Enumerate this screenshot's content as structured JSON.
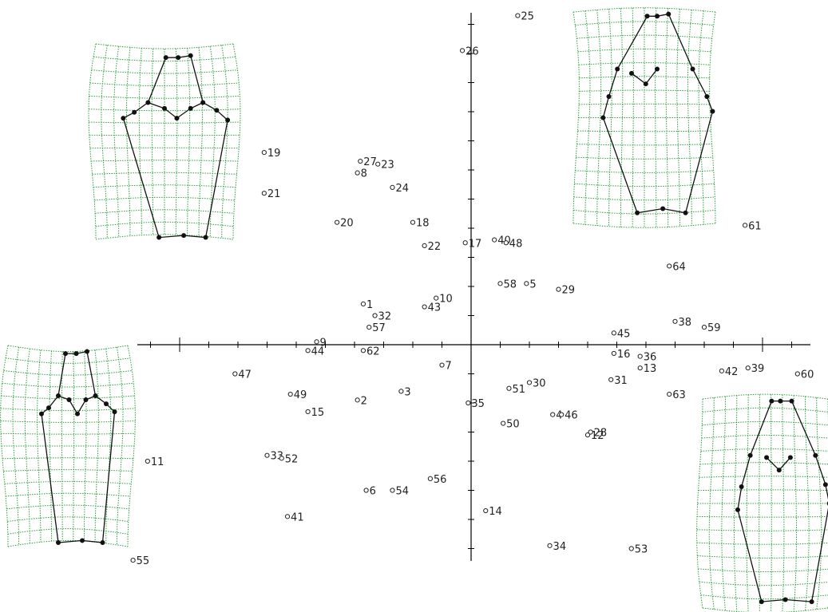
{
  "chart_data": {
    "type": "scatter",
    "title": "",
    "xlabel": "",
    "ylabel": "",
    "xlim": [
      -11.6,
      11.6
    ],
    "ylim": [
      -7.5,
      11.5
    ],
    "grid": false,
    "points": [
      {
        "label": "1",
        "x": -3.7,
        "y": 1.4
      },
      {
        "label": "2",
        "x": -3.9,
        "y": -1.9
      },
      {
        "label": "3",
        "x": -2.4,
        "y": -1.6
      },
      {
        "label": "4",
        "x": 2.8,
        "y": -2.4
      },
      {
        "label": "5",
        "x": 1.9,
        "y": 2.1
      },
      {
        "label": "6",
        "x": -3.6,
        "y": -5.0
      },
      {
        "label": "7",
        "x": -1.0,
        "y": -0.7
      },
      {
        "label": "8",
        "x": -3.9,
        "y": 5.9
      },
      {
        "label": "9",
        "x": -5.3,
        "y": 0.1
      },
      {
        "label": "10",
        "x": -1.2,
        "y": 1.6
      },
      {
        "label": "11",
        "x": -11.1,
        "y": -4.0
      },
      {
        "label": "12",
        "x": 4.0,
        "y": -3.1
      },
      {
        "label": "13",
        "x": 5.8,
        "y": -0.8
      },
      {
        "label": "14",
        "x": 0.5,
        "y": -5.7
      },
      {
        "label": "15",
        "x": -5.6,
        "y": -2.3
      },
      {
        "label": "16",
        "x": 4.9,
        "y": -0.3
      },
      {
        "label": "17",
        "x": -0.2,
        "y": 3.5
      },
      {
        "label": "18",
        "x": -2.0,
        "y": 4.2
      },
      {
        "label": "19",
        "x": -7.1,
        "y": 6.6
      },
      {
        "label": "20",
        "x": -4.6,
        "y": 4.2
      },
      {
        "label": "21",
        "x": -7.1,
        "y": 5.2
      },
      {
        "label": "22",
        "x": -1.6,
        "y": 3.4
      },
      {
        "label": "23",
        "x": -3.2,
        "y": 6.2
      },
      {
        "label": "24",
        "x": -2.7,
        "y": 5.4
      },
      {
        "label": "25",
        "x": 1.6,
        "y": 11.3
      },
      {
        "label": "26",
        "x": -0.3,
        "y": 10.1
      },
      {
        "label": "27",
        "x": -3.8,
        "y": 6.3
      },
      {
        "label": "28",
        "x": 4.1,
        "y": -3.0
      },
      {
        "label": "29",
        "x": 3.0,
        "y": 1.9
      },
      {
        "label": "30",
        "x": 2.0,
        "y": -1.3
      },
      {
        "label": "31",
        "x": 4.8,
        "y": -1.2
      },
      {
        "label": "32",
        "x": -3.3,
        "y": 1.0
      },
      {
        "label": "33",
        "x": -7.0,
        "y": -3.8
      },
      {
        "label": "34",
        "x": 2.7,
        "y": -6.9
      },
      {
        "label": "35",
        "x": -0.1,
        "y": -2.0
      },
      {
        "label": "36",
        "x": 5.8,
        "y": -0.4
      },
      {
        "label": "38",
        "x": 7.0,
        "y": 0.8
      },
      {
        "label": "39",
        "x": 9.5,
        "y": -0.8
      },
      {
        "label": "40",
        "x": 0.8,
        "y": 3.6
      },
      {
        "label": "41",
        "x": -6.3,
        "y": -5.9
      },
      {
        "label": "42",
        "x": 8.6,
        "y": -0.9
      },
      {
        "label": "43",
        "x": -1.6,
        "y": 1.3
      },
      {
        "label": "44",
        "x": -5.6,
        "y": -0.2
      },
      {
        "label": "45",
        "x": 4.9,
        "y": 0.4
      },
      {
        "label": "46",
        "x": 3.1,
        "y": -2.4
      },
      {
        "label": "47",
        "x": -8.1,
        "y": -1.0
      },
      {
        "label": "48",
        "x": 1.2,
        "y": 3.5
      },
      {
        "label": "49",
        "x": -6.2,
        "y": -1.7
      },
      {
        "label": "50",
        "x": 1.1,
        "y": -2.7
      },
      {
        "label": "51",
        "x": 1.3,
        "y": -1.5
      },
      {
        "label": "52",
        "x": -6.5,
        "y": -3.9
      },
      {
        "label": "53",
        "x": 5.5,
        "y": -7.0
      },
      {
        "label": "54",
        "x": -2.7,
        "y": -5.0
      },
      {
        "label": "55",
        "x": -11.6,
        "y": -7.4
      },
      {
        "label": "56",
        "x": -1.4,
        "y": -4.6
      },
      {
        "label": "57",
        "x": -3.5,
        "y": 0.6
      },
      {
        "label": "58",
        "x": 1.0,
        "y": 2.1
      },
      {
        "label": "59",
        "x": 8.0,
        "y": 0.6
      },
      {
        "label": "60",
        "x": 11.2,
        "y": -1.0
      },
      {
        "label": "61",
        "x": 9.4,
        "y": 4.1
      },
      {
        "label": "62",
        "x": -3.7,
        "y": -0.2
      },
      {
        "label": "64",
        "x": 6.8,
        "y": 2.7
      },
      {
        "label": "63",
        "x": 6.8,
        "y": -1.7
      }
    ]
  },
  "grid_color": "#2e9e3e",
  "outline_color": "#111111"
}
